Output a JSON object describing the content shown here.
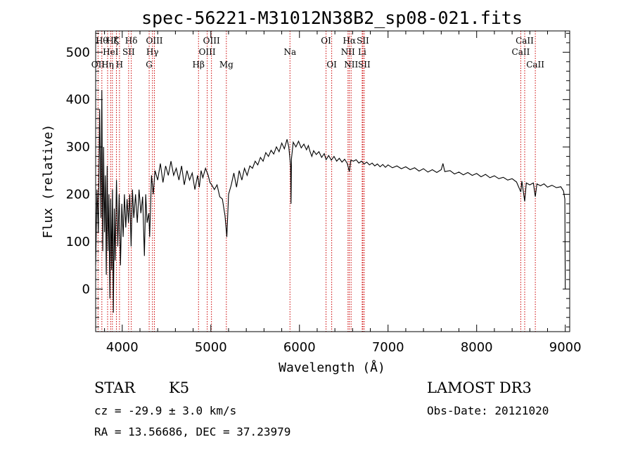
{
  "chart_data": {
    "type": "line",
    "title": "spec-56221-M31012N38B2_sp08-021.fits",
    "xlabel": "Wavelength (Å)",
    "ylabel": "Flux (relative)",
    "xlim": [
      3700,
      9050
    ],
    "ylim": [
      -90,
      545
    ],
    "xticks": [
      4000,
      5000,
      6000,
      7000,
      8000,
      9000
    ],
    "yticks": [
      0,
      100,
      200,
      300,
      400,
      500
    ],
    "series": [
      {
        "name": "spectrum",
        "points": [
          [
            3700,
            50
          ],
          [
            3715,
            210
          ],
          [
            3730,
            120
          ],
          [
            3745,
            380
          ],
          [
            3760,
            150
          ],
          [
            3770,
            420
          ],
          [
            3780,
            80
          ],
          [
            3790,
            300
          ],
          [
            3800,
            120
          ],
          [
            3810,
            240
          ],
          [
            3820,
            30
          ],
          [
            3830,
            260
          ],
          [
            3840,
            80
          ],
          [
            3850,
            200
          ],
          [
            3860,
            -20
          ],
          [
            3870,
            190
          ],
          [
            3880,
            40
          ],
          [
            3890,
            210
          ],
          [
            3900,
            -50
          ],
          [
            3910,
            170
          ],
          [
            3920,
            60
          ],
          [
            3935,
            230
          ],
          [
            3950,
            90
          ],
          [
            3965,
            200
          ],
          [
            3980,
            50
          ],
          [
            3995,
            180
          ],
          [
            4010,
            110
          ],
          [
            4025,
            200
          ],
          [
            4040,
            130
          ],
          [
            4055,
            190
          ],
          [
            4070,
            140
          ],
          [
            4085,
            200
          ],
          [
            4100,
            90
          ],
          [
            4115,
            210
          ],
          [
            4130,
            150
          ],
          [
            4150,
            200
          ],
          [
            4170,
            140
          ],
          [
            4190,
            210
          ],
          [
            4210,
            160
          ],
          [
            4230,
            195
          ],
          [
            4250,
            70
          ],
          [
            4265,
            200
          ],
          [
            4280,
            140
          ],
          [
            4300,
            160
          ],
          [
            4310,
            110
          ],
          [
            4330,
            240
          ],
          [
            4350,
            200
          ],
          [
            4370,
            250
          ],
          [
            4400,
            230
          ],
          [
            4430,
            265
          ],
          [
            4460,
            225
          ],
          [
            4490,
            260
          ],
          [
            4520,
            240
          ],
          [
            4550,
            270
          ],
          [
            4580,
            240
          ],
          [
            4610,
            255
          ],
          [
            4640,
            230
          ],
          [
            4670,
            260
          ],
          [
            4700,
            220
          ],
          [
            4730,
            250
          ],
          [
            4760,
            230
          ],
          [
            4790,
            245
          ],
          [
            4820,
            210
          ],
          [
            4850,
            240
          ],
          [
            4870,
            215
          ],
          [
            4890,
            250
          ],
          [
            4910,
            235
          ],
          [
            4940,
            255
          ],
          [
            4970,
            240
          ],
          [
            4990,
            225
          ],
          [
            5010,
            220
          ],
          [
            5040,
            210
          ],
          [
            5070,
            220
          ],
          [
            5100,
            195
          ],
          [
            5130,
            190
          ],
          [
            5160,
            155
          ],
          [
            5180,
            110
          ],
          [
            5200,
            200
          ],
          [
            5230,
            220
          ],
          [
            5260,
            245
          ],
          [
            5290,
            215
          ],
          [
            5320,
            250
          ],
          [
            5350,
            230
          ],
          [
            5380,
            255
          ],
          [
            5410,
            240
          ],
          [
            5440,
            260
          ],
          [
            5470,
            255
          ],
          [
            5500,
            270
          ],
          [
            5530,
            262
          ],
          [
            5560,
            278
          ],
          [
            5590,
            270
          ],
          [
            5620,
            288
          ],
          [
            5650,
            280
          ],
          [
            5680,
            293
          ],
          [
            5710,
            285
          ],
          [
            5740,
            300
          ],
          [
            5770,
            290
          ],
          [
            5800,
            308
          ],
          [
            5830,
            296
          ],
          [
            5860,
            316
          ],
          [
            5880,
            300
          ],
          [
            5900,
            260
          ],
          [
            5905,
            180
          ],
          [
            5910,
            275
          ],
          [
            5930,
            310
          ],
          [
            5960,
            300
          ],
          [
            5990,
            312
          ],
          [
            6020,
            298
          ],
          [
            6050,
            306
          ],
          [
            6080,
            294
          ],
          [
            6100,
            303
          ],
          [
            6120,
            290
          ],
          [
            6140,
            280
          ],
          [
            6160,
            292
          ],
          [
            6190,
            284
          ],
          [
            6220,
            290
          ],
          [
            6250,
            278
          ],
          [
            6280,
            286
          ],
          [
            6300,
            273
          ],
          [
            6330,
            282
          ],
          [
            6360,
            272
          ],
          [
            6390,
            280
          ],
          [
            6420,
            270
          ],
          [
            6450,
            276
          ],
          [
            6480,
            268
          ],
          [
            6510,
            274
          ],
          [
            6540,
            265
          ],
          [
            6563,
            248
          ],
          [
            6580,
            272
          ],
          [
            6610,
            270
          ],
          [
            6640,
            273
          ],
          [
            6670,
            266
          ],
          [
            6700,
            270
          ],
          [
            6730,
            264
          ],
          [
            6760,
            268
          ],
          [
            6790,
            262
          ],
          [
            6820,
            266
          ],
          [
            6850,
            260
          ],
          [
            6880,
            264
          ],
          [
            6910,
            258
          ],
          [
            6940,
            263
          ],
          [
            6970,
            257
          ],
          [
            7000,
            262
          ],
          [
            7050,
            256
          ],
          [
            7100,
            260
          ],
          [
            7150,
            254
          ],
          [
            7200,
            258
          ],
          [
            7250,
            252
          ],
          [
            7300,
            256
          ],
          [
            7350,
            249
          ],
          [
            7400,
            254
          ],
          [
            7450,
            247
          ],
          [
            7500,
            252
          ],
          [
            7550,
            246
          ],
          [
            7600,
            252
          ],
          [
            7620,
            265
          ],
          [
            7640,
            248
          ],
          [
            7700,
            250
          ],
          [
            7750,
            243
          ],
          [
            7800,
            247
          ],
          [
            7850,
            241
          ],
          [
            7900,
            246
          ],
          [
            7950,
            240
          ],
          [
            8000,
            244
          ],
          [
            8050,
            237
          ],
          [
            8100,
            242
          ],
          [
            8150,
            235
          ],
          [
            8200,
            239
          ],
          [
            8250,
            233
          ],
          [
            8300,
            236
          ],
          [
            8350,
            230
          ],
          [
            8400,
            233
          ],
          [
            8450,
            226
          ],
          [
            8498,
            205
          ],
          [
            8510,
            228
          ],
          [
            8542,
            185
          ],
          [
            8560,
            224
          ],
          [
            8600,
            220
          ],
          [
            8640,
            224
          ],
          [
            8662,
            195
          ],
          [
            8680,
            222
          ],
          [
            8720,
            218
          ],
          [
            8760,
            222
          ],
          [
            8800,
            215
          ],
          [
            8850,
            219
          ],
          [
            8900,
            214
          ],
          [
            8950,
            216
          ],
          [
            8980,
            207
          ],
          [
            8995,
            190
          ],
          [
            9000,
            0
          ]
        ]
      }
    ],
    "lines": [
      {
        "wave": 3727,
        "label": "OII",
        "row": 3
      },
      {
        "wave": 3770,
        "label": "Hθ",
        "row": 1
      },
      {
        "wave": 3835,
        "label": "Hη",
        "row": 3
      },
      {
        "wave": 3869,
        "label": "HeI",
        "row": 2
      },
      {
        "wave": 3889,
        "label": "Hζ",
        "row": 1
      },
      {
        "wave": 3934,
        "label": "K",
        "row": 1
      },
      {
        "wave": 3969,
        "label": "H",
        "row": 3
      },
      {
        "wave": 4072,
        "label": "SII",
        "row": 2
      },
      {
        "wave": 4102,
        "label": "Hδ",
        "row": 1
      },
      {
        "wave": 4304,
        "label": "G",
        "row": 3
      },
      {
        "wave": 4341,
        "label": "Hγ",
        "row": 2
      },
      {
        "wave": 4363,
        "label": "OIII",
        "row": 1
      },
      {
        "wave": 4861,
        "label": "Hβ",
        "row": 3
      },
      {
        "wave": 4959,
        "label": "OIII",
        "row": 2
      },
      {
        "wave": 5007,
        "label": "OIII",
        "row": 1
      },
      {
        "wave": 5175,
        "label": "Mg",
        "row": 3
      },
      {
        "wave": 5893,
        "label": "Na",
        "row": 2
      },
      {
        "wave": 6300,
        "label": "OI",
        "row": 1
      },
      {
        "wave": 6364,
        "label": "OI",
        "row": 3
      },
      {
        "wave": 6548,
        "label": "NII",
        "row": 2
      },
      {
        "wave": 6563,
        "label": "Hα",
        "row": 1
      },
      {
        "wave": 6583,
        "label": "NII",
        "row": 3
      },
      {
        "wave": 6708,
        "label": "Li",
        "row": 2
      },
      {
        "wave": 6716,
        "label": "SII",
        "row": 1
      },
      {
        "wave": 6731,
        "label": "SII",
        "row": 3
      },
      {
        "wave": 8498,
        "label": "CaII",
        "row": 2
      },
      {
        "wave": 8542,
        "label": "CaII",
        "row": 1
      },
      {
        "wave": 8662,
        "label": "CaII",
        "row": 3
      }
    ],
    "line_color": "#cc0000",
    "spectrum_color": "#000000"
  },
  "info": {
    "object_class": "STAR",
    "subclass": "K5",
    "survey": "LAMOST DR3",
    "velocity": "cz = -29.9 ± 3.0 km/s",
    "obs_date": "Obs-Date: 20121020",
    "coords": "RA =  13.56686, DEC =  37.23979"
  }
}
